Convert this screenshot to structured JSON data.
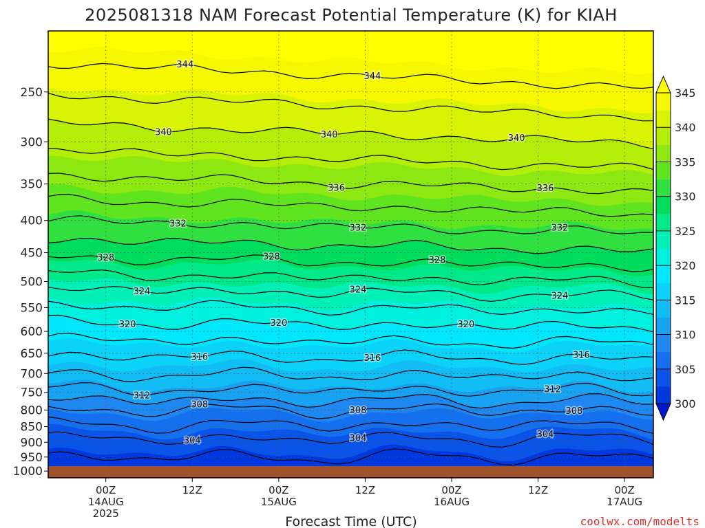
{
  "title": "2025081318 NAM Forecast Potential Temperature (K) for KIAH",
  "watermark": "coolwx.com/modelts",
  "colors": {
    "terrain": "#a0522d",
    "contour_line": "#000000",
    "grid": "#555555",
    "watermark": "#e03030"
  },
  "chart_data": {
    "type": "heatmap",
    "title": "2025081318 NAM Forecast Potential Temperature (K) for KIAH",
    "xlabel": "Forecast Time (UTC)",
    "ylabel": "",
    "x_axis": {
      "units": "hours since 2025-08-13 18Z",
      "range": [
        -2,
        82
      ],
      "ticks": [
        {
          "h": 6,
          "lines": [
            "00Z",
            "14AUG",
            "2025"
          ]
        },
        {
          "h": 18,
          "lines": [
            "12Z"
          ]
        },
        {
          "h": 30,
          "lines": [
            "00Z",
            "15AUG"
          ]
        },
        {
          "h": 42,
          "lines": [
            "12Z"
          ]
        },
        {
          "h": 54,
          "lines": [
            "00Z",
            "16AUG"
          ]
        },
        {
          "h": 66,
          "lines": [
            "12Z"
          ]
        },
        {
          "h": 78,
          "lines": [
            "00Z",
            "17AUG"
          ]
        }
      ]
    },
    "y_axis": {
      "units": "hPa",
      "scale": "log",
      "reversed": true,
      "range": [
        1025,
        200
      ],
      "ticks": [
        250,
        300,
        350,
        400,
        450,
        500,
        550,
        600,
        650,
        700,
        750,
        800,
        850,
        900,
        950,
        1000
      ]
    },
    "grid": true,
    "colorbar": {
      "position": "right",
      "ticks": [
        300,
        305,
        310,
        315,
        320,
        325,
        330,
        335,
        340,
        345
      ],
      "levels": [
        300,
        302.5,
        305,
        307.5,
        310,
        312.5,
        315,
        317.5,
        320,
        322.5,
        325,
        327.5,
        330,
        332.5,
        335,
        337.5,
        340,
        342.5,
        345
      ],
      "colors": [
        "#0018d0",
        "#0038e0",
        "#0a55e8",
        "#1470ee",
        "#1e88f0",
        "#18a2f2",
        "#12bcf4",
        "#0ad2f8",
        "#00e6fc",
        "#00f0e0",
        "#00f0b8",
        "#00e888",
        "#00dc5c",
        "#30e040",
        "#60e420",
        "#8ce810",
        "#b4ee08",
        "#d8f404",
        "#f6f800",
        "#ffff00"
      ],
      "extend": "both"
    },
    "profile": [
      {
        "p": 1000,
        "theta": 301.0
      },
      {
        "p": 970,
        "theta": 301.6
      },
      {
        "p": 950,
        "theta": 302.0
      },
      {
        "p": 925,
        "theta": 302.8
      },
      {
        "p": 900,
        "theta": 303.5
      },
      {
        "p": 875,
        "theta": 304.6
      },
      {
        "p": 850,
        "theta": 305.8
      },
      {
        "p": 820,
        "theta": 307.0
      },
      {
        "p": 800,
        "theta": 308.0
      },
      {
        "p": 775,
        "theta": 309.8
      },
      {
        "p": 750,
        "theta": 311.6
      },
      {
        "p": 725,
        "theta": 313.0
      },
      {
        "p": 700,
        "theta": 314.2
      },
      {
        "p": 675,
        "theta": 315.3
      },
      {
        "p": 650,
        "theta": 316.4
      },
      {
        "p": 625,
        "theta": 317.8
      },
      {
        "p": 600,
        "theta": 319.2
      },
      {
        "p": 575,
        "theta": 320.5
      },
      {
        "p": 550,
        "theta": 322.0
      },
      {
        "p": 525,
        "theta": 323.6
      },
      {
        "p": 500,
        "theta": 325.4
      },
      {
        "p": 475,
        "theta": 327.2
      },
      {
        "p": 450,
        "theta": 329.0
      },
      {
        "p": 425,
        "theta": 330.8
      },
      {
        "p": 400,
        "theta": 332.5
      },
      {
        "p": 375,
        "theta": 334.2
      },
      {
        "p": 350,
        "theta": 335.8
      },
      {
        "p": 325,
        "theta": 337.5
      },
      {
        "p": 300,
        "theta": 339.2
      },
      {
        "p": 275,
        "theta": 341.0
      },
      {
        "p": 250,
        "theta": 342.8
      },
      {
        "p": 225,
        "theta": 344.6
      },
      {
        "p": 200,
        "theta": 347.0
      }
    ],
    "contours": {
      "levels": [
        302,
        304,
        306,
        308,
        310,
        312,
        314,
        316,
        318,
        320,
        322,
        324,
        326,
        328,
        330,
        332,
        334,
        336,
        338,
        340,
        342,
        344
      ],
      "labels": [
        {
          "level": 304,
          "h": 18,
          "text": "304"
        },
        {
          "level": 304,
          "h": 41,
          "text": "304"
        },
        {
          "level": 304,
          "h": 67,
          "text": "304"
        },
        {
          "level": 308,
          "h": 19,
          "text": "308"
        },
        {
          "level": 308,
          "h": 41,
          "text": "308"
        },
        {
          "level": 308,
          "h": 71,
          "text": "308"
        },
        {
          "level": 312,
          "h": 11,
          "text": "312"
        },
        {
          "level": 312,
          "h": 68,
          "text": "312"
        },
        {
          "level": 316,
          "h": 19,
          "text": "316"
        },
        {
          "level": 316,
          "h": 43,
          "text": "316"
        },
        {
          "level": 316,
          "h": 72,
          "text": "316"
        },
        {
          "level": 320,
          "h": 9,
          "text": "320"
        },
        {
          "level": 320,
          "h": 30,
          "text": "320"
        },
        {
          "level": 320,
          "h": 56,
          "text": "320"
        },
        {
          "level": 324,
          "h": 11,
          "text": "324"
        },
        {
          "level": 324,
          "h": 41,
          "text": "324"
        },
        {
          "level": 324,
          "h": 69,
          "text": "324"
        },
        {
          "level": 328,
          "h": 6,
          "text": "328"
        },
        {
          "level": 328,
          "h": 29,
          "text": "328"
        },
        {
          "level": 328,
          "h": 52,
          "text": "328"
        },
        {
          "level": 332,
          "h": 16,
          "text": "332"
        },
        {
          "level": 332,
          "h": 41,
          "text": "332"
        },
        {
          "level": 332,
          "h": 69,
          "text": "332"
        },
        {
          "level": 336,
          "h": 38,
          "text": "336"
        },
        {
          "level": 336,
          "h": 67,
          "text": "336"
        },
        {
          "level": 340,
          "h": 14,
          "text": "340"
        },
        {
          "level": 340,
          "h": 37,
          "text": "340"
        },
        {
          "level": 340,
          "h": 63,
          "text": "340"
        },
        {
          "level": 344,
          "h": 17,
          "text": "344"
        },
        {
          "level": 344,
          "h": 43,
          "text": "344"
        }
      ]
    }
  }
}
